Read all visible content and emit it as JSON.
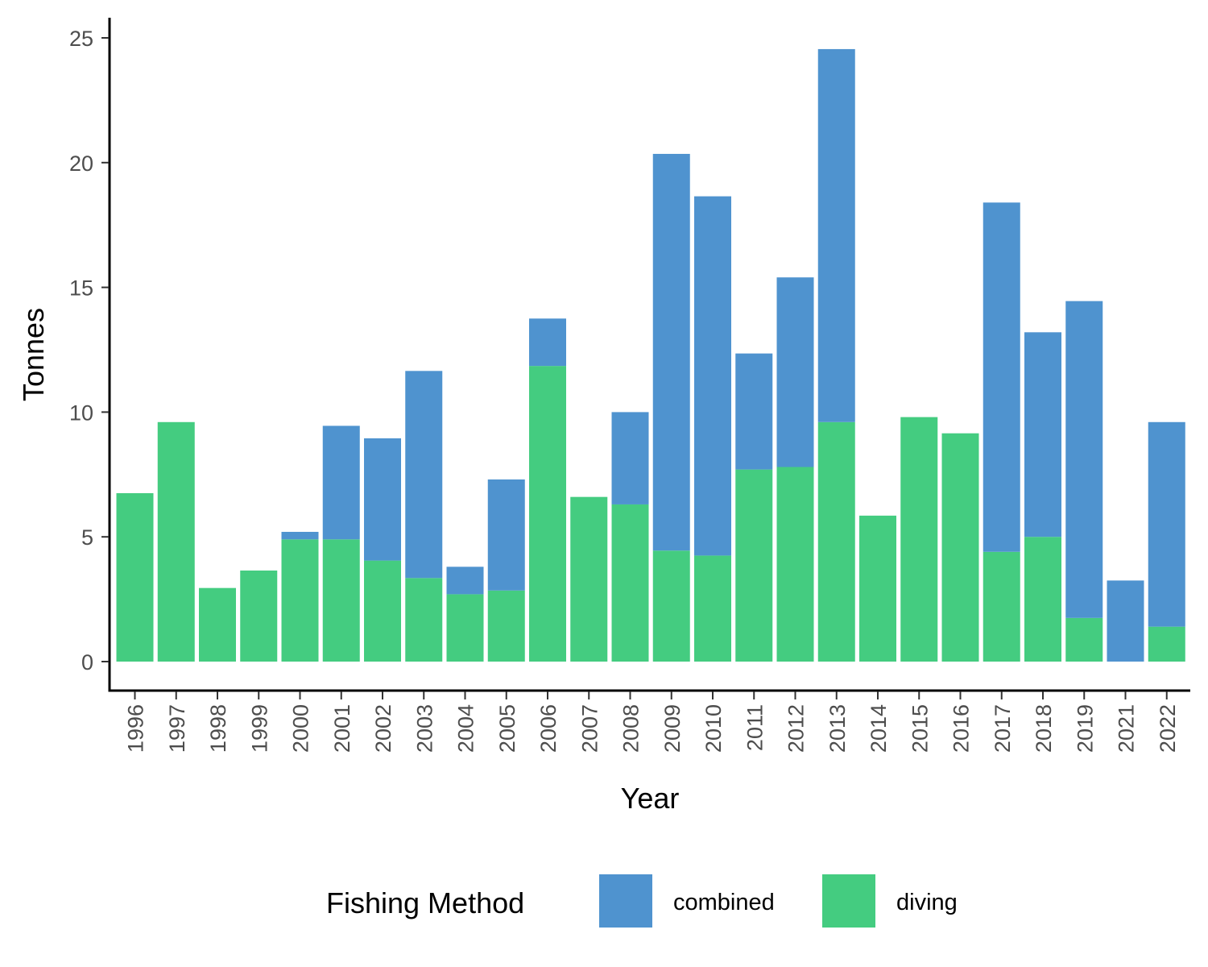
{
  "chart_data": {
    "type": "bar",
    "stacked": true,
    "categories": [
      "1996",
      "1997",
      "1998",
      "1999",
      "2000",
      "2001",
      "2002",
      "2003",
      "2004",
      "2005",
      "2006",
      "2007",
      "2008",
      "2009",
      "2010",
      "2011",
      "2012",
      "2013",
      "2014",
      "2015",
      "2016",
      "2017",
      "2018",
      "2019",
      "2021",
      "2022"
    ],
    "series": [
      {
        "name": "diving",
        "color": "#44CC80",
        "values": [
          6.75,
          9.6,
          2.95,
          3.65,
          4.9,
          4.9,
          4.05,
          3.35,
          2.7,
          2.85,
          11.85,
          6.6,
          6.3,
          4.45,
          4.25,
          7.7,
          7.8,
          9.6,
          5.85,
          9.8,
          9.15,
          4.4,
          5.0,
          1.75,
          0,
          1.4
        ]
      },
      {
        "name": "combined",
        "color": "#4F93CF",
        "values": [
          0,
          0,
          0,
          0,
          0.3,
          4.55,
          4.9,
          8.3,
          1.1,
          4.45,
          1.9,
          0,
          3.7,
          15.9,
          14.4,
          4.65,
          7.6,
          14.95,
          0,
          0,
          0,
          14.0,
          8.2,
          12.7,
          3.25,
          8.2
        ]
      }
    ],
    "title": "",
    "xlabel": "Year",
    "ylabel": "Tonnes",
    "ylim": [
      0,
      25
    ],
    "yticks": [
      "0",
      "5",
      "10",
      "15",
      "20",
      "25"
    ],
    "legend": {
      "title": "Fishing Method",
      "position": "bottom",
      "items": [
        {
          "label": "combined",
          "color": "#4F93CF"
        },
        {
          "label": "diving",
          "color": "#44CC80"
        }
      ]
    },
    "grid": false
  }
}
